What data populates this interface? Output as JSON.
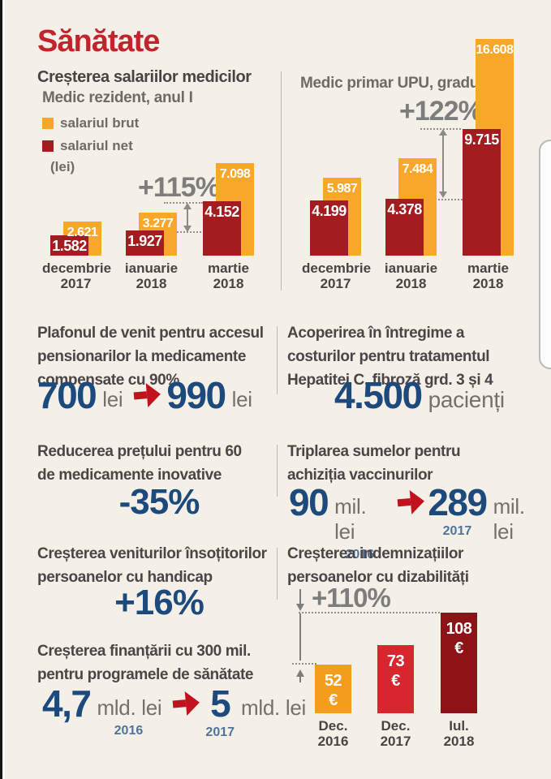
{
  "page": {
    "title": "Sănătate"
  },
  "salary_section": {
    "heading": "Creșterea salariilor medicilor",
    "left_subtitle": "Medic rezident, anul I",
    "right_subtitle": "Medic primar UPU, gradul 5",
    "unit_note": "(lei)",
    "legend": [
      {
        "label": "salariul brut",
        "color": "#f9a72b"
      },
      {
        "label": "salariul net",
        "color": "#a31c20"
      }
    ]
  },
  "chart_data": [
    {
      "type": "bar",
      "title": "Medic rezident, anul I",
      "ylabel": "lei",
      "categories": [
        "decembrie\n2017",
        "ianuarie\n2018",
        "martie\n2018"
      ],
      "series": [
        {
          "name": "salariul brut",
          "values": [
            2621,
            3277,
            7098
          ],
          "labels": [
            "2.621",
            "3.277",
            "7.098"
          ],
          "color": "#f9a72b"
        },
        {
          "name": "salariul net",
          "values": [
            1582,
            1927,
            4152
          ],
          "labels": [
            "1.582",
            "1.927",
            "4.152"
          ],
          "color": "#a31c20"
        }
      ],
      "annotation": "+115%",
      "legend_position": "top-left"
    },
    {
      "type": "bar",
      "title": "Medic primar UPU, gradul 5",
      "ylabel": "lei",
      "categories": [
        "decembrie\n2017",
        "ianuarie\n2018",
        "martie\n2018"
      ],
      "series": [
        {
          "name": "salariul brut",
          "values": [
            5987,
            7484,
            16608
          ],
          "labels": [
            "5.987",
            "7.484",
            "16.608"
          ],
          "color": "#f9a72b"
        },
        {
          "name": "salariul net",
          "values": [
            4199,
            4378,
            9715
          ],
          "labels": [
            "4.199",
            "4.378",
            "9.715"
          ],
          "color": "#a31c20"
        }
      ],
      "annotation": "+122%",
      "legend_position": "none"
    },
    {
      "type": "bar",
      "title": "Creșterea indemnizațiilor persoanelor cu dizabilități",
      "categories": [
        "Dec.\n2016",
        "Dec.\n2017",
        "Iul.\n2018"
      ],
      "values": [
        52,
        73,
        108
      ],
      "labels": [
        "52\n€",
        "73\n€",
        "108\n€"
      ],
      "colors": [
        "#f49d1d",
        "#d7262d",
        "#8d1317"
      ],
      "annotation": "+110%"
    }
  ],
  "stats": {
    "pension": {
      "heading": "Plafonul de venit pentru accesul\npensionarilor la medicamente\ncompensate cu 90%",
      "from": "700",
      "from_unit": "lei",
      "to": "990",
      "to_unit": "lei"
    },
    "hepatitis": {
      "heading": "Acoperirea în întregime a\ncosturilor pentru tratamentul\nHepatitei C, fibroză grd. 3 și 4",
      "value": "4.500",
      "unit": "pacienți"
    },
    "drugs": {
      "heading": "Reducerea prețului pentru 60\nde medicamente inovative",
      "value": "-35%"
    },
    "vaccines": {
      "heading": "Triplarea sumelor pentru\nachiziția vaccinurilor",
      "from": "90",
      "from_unit": "mil. lei",
      "from_year": "2016",
      "to": "289",
      "to_unit": "mil. lei",
      "to_year": "2017"
    },
    "caregivers": {
      "heading": "Creșterea veniturilor însoțitorilor\npersoanelor cu handicap",
      "value": "+16%"
    },
    "disability": {
      "heading": "Creșterea indemnizațiilor\npersoanelor cu dizabilități",
      "annotation": "+110%"
    },
    "funding": {
      "heading": "Creșterea finanțării cu 300 mil.\npentru programele de sănătate",
      "from": "4,7",
      "from_unit": "mld. lei",
      "from_year": "2016",
      "to": "5",
      "to_unit": "mld. lei",
      "to_year": "2017"
    }
  }
}
